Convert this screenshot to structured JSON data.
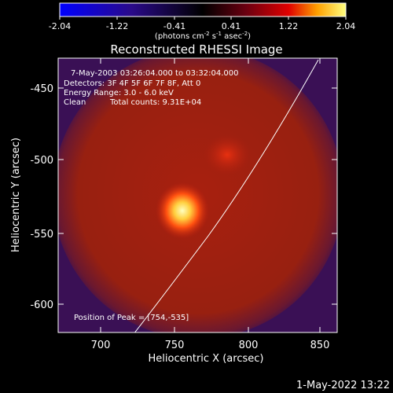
{
  "colorbar": {
    "ticks": [
      "-2.04",
      "-1.22",
      "-0.41",
      "0.41",
      "1.22",
      "2.04"
    ],
    "units_prefix": "(photons cm",
    "units_exp1": "-2",
    "units_mid1": " s",
    "units_exp2": "-1",
    "units_mid2": " asec",
    "units_exp3": "-2",
    "units_suffix": ")"
  },
  "plot": {
    "title": "Reconstructed RHESSI Image",
    "xlabel": "Heliocentric X (arcsec)",
    "ylabel": "Heliocentric Y (arcsec)",
    "x_ticks": [
      "700",
      "750",
      "800",
      "850"
    ],
    "y_ticks": [
      "-450",
      "-500",
      "-550",
      "-600"
    ],
    "xlim": [
      665,
      860
    ],
    "ylim": [
      -620,
      -425
    ]
  },
  "annotations": {
    "time_range": "7-May-2003 03:26:04.000 to 03:32:04.000",
    "detectors": "Detectors: 3F 4F 5F 6F 7F 8F, Att 0",
    "energy": "Energy Range: 3.0 - 6.0 keV",
    "method": "Clean",
    "counts": "Total counts: 9.31E+04",
    "peak": "Position of Peak = [754,-535]"
  },
  "footer": {
    "timestamp": "1-May-2022 13:22"
  }
}
